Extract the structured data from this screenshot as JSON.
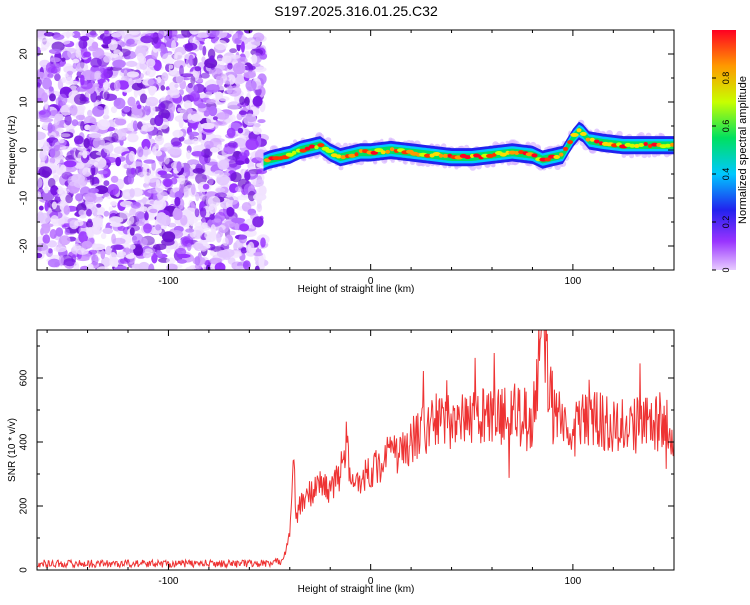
{
  "title": "S197.2025.316.01.25.C32",
  "chart_data": [
    {
      "type": "heatmap",
      "panel": "spectrogram",
      "xlabel": "Height of straight line (km)",
      "ylabel": "Frequency (Hz)",
      "xlim": [
        -165,
        150
      ],
      "ylim": [
        -25,
        25
      ],
      "x_ticks": [
        -100,
        0,
        100
      ],
      "y_ticks": [
        -20,
        -10,
        0,
        10,
        20
      ],
      "colorbar": {
        "label": "Normalized spectral amplitude",
        "range": [
          0,
          1
        ],
        "ticks": [
          0,
          0.2,
          0.4,
          0.6,
          0.8
        ],
        "colormap": [
          "#e8ccff",
          "#9933ff",
          "#2222ee",
          "#00c8ff",
          "#00e060",
          "#c8ff00",
          "#ff9900",
          "#ff0022"
        ]
      },
      "noise_region_x": [
        -165,
        -53
      ],
      "signal_track": {
        "x": [
          -53,
          -50,
          -45,
          -40,
          -35,
          -30,
          -25,
          -20,
          -15,
          -10,
          -5,
          0,
          10,
          20,
          30,
          40,
          50,
          60,
          70,
          80,
          85,
          90,
          95,
          100,
          103,
          105,
          108,
          115,
          125,
          135,
          150
        ],
        "y": [
          -2.5,
          -2,
          -1.5,
          -1,
          0,
          0.5,
          1,
          -0.5,
          -1.5,
          -1,
          -0.5,
          -0.5,
          0,
          -0.5,
          -1,
          -1.5,
          -1.5,
          -1,
          -0.5,
          -1,
          -2,
          -1.5,
          -1,
          2.5,
          4,
          3.5,
          2,
          1.5,
          1,
          1,
          1
        ]
      }
    },
    {
      "type": "line",
      "panel": "snr",
      "xlabel": "Height of straight line (km)",
      "ylabel": "SNR (10 * v/v)",
      "xlim": [
        -165,
        150
      ],
      "ylim": [
        0,
        750
      ],
      "x_ticks": [
        -100,
        0,
        100
      ],
      "y_ticks": [
        0,
        200,
        400,
        600
      ],
      "line_color": "#ee3333",
      "series": [
        {
          "name": "SNR",
          "x": [
            -165,
            -120,
            -80,
            -48,
            -44,
            -42,
            -40,
            -39,
            -38,
            -37,
            -35,
            -30,
            -25,
            -20,
            -15,
            -12,
            -10,
            -5,
            0,
            5,
            10,
            15,
            20,
            25,
            30,
            40,
            50,
            60,
            70,
            80,
            85,
            90,
            100,
            110,
            120,
            130,
            140,
            150
          ],
          "y": [
            20,
            20,
            20,
            20,
            30,
            60,
            120,
            250,
            350,
            150,
            200,
            240,
            270,
            250,
            300,
            410,
            260,
            290,
            310,
            330,
            370,
            360,
            400,
            430,
            460,
            460,
            470,
            480,
            490,
            470,
            760,
            480,
            450,
            470,
            460,
            450,
            470,
            430
          ]
        }
      ]
    }
  ]
}
